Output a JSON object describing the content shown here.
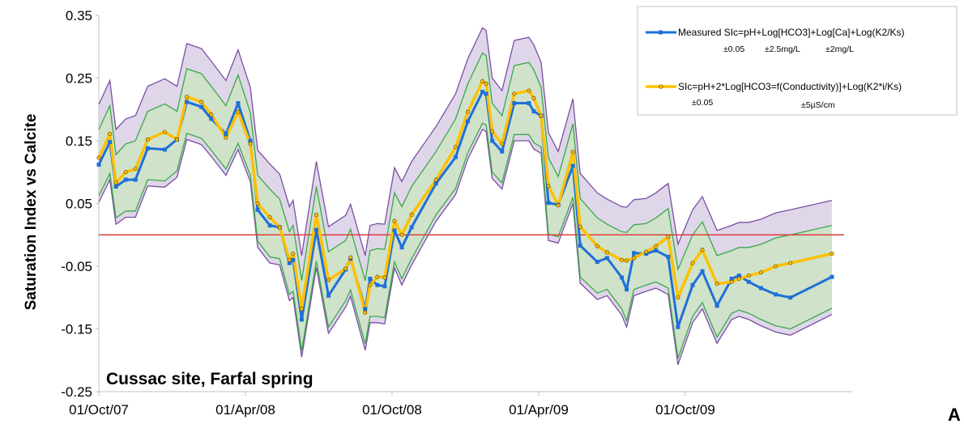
{
  "chart_data": {
    "type": "line",
    "ylabel": "Saturation Index vs Calcite",
    "annotation": "Cussac site, Farfal spring",
    "panel_label": "A",
    "ylim": [
      -0.25,
      0.35
    ],
    "y_ticks": [
      "0.35",
      "0.25",
      "0.15",
      "0.05",
      "-0.05",
      "-0.15",
      "-0.25"
    ],
    "x_ticks": [
      "01/Oct/07",
      "01/Apr/08",
      "01/Oct/08",
      "01/Apr/09",
      "01/Oct/09"
    ],
    "x_range_months": [
      0,
      30.5
    ],
    "reference_line": 0,
    "legend_position": "top-right",
    "legend": {
      "measured_label": "Measured SIc=pH+Log[HCO3]+Log[Ca]+Log(K2/Ks)",
      "measured_sub": [
        "±0.05",
        "±2.5mg/L",
        "±2mg/L"
      ],
      "calc_label": "SIc=pH+2*Log[HCO3=f(Conductivity)]+Log(K2*i/Ks)",
      "calc_sub": [
        "±0.05",
        "±5µS/cm"
      ]
    },
    "colors": {
      "measured": "#1f6fd9",
      "calculated": "#ffc000",
      "band_outer": "#7a4fa0",
      "band_inner": "#3aa84a",
      "reference": "#e03c3c"
    },
    "x": [
      0,
      0.45,
      0.7,
      1.1,
      1.5,
      2.0,
      2.7,
      3.2,
      3.6,
      4.2,
      4.6,
      5.2,
      5.7,
      6.2,
      6.5,
      7.0,
      7.4,
      7.8,
      7.95,
      8.3,
      8.9,
      9.4,
      10.1,
      10.3,
      10.9,
      11.1,
      11.4,
      11.7,
      12.1,
      12.4,
      12.8,
      13.8,
      14.6,
      15.1,
      15.7,
      15.85,
      16.1,
      16.5,
      17.0,
      17.6,
      17.8,
      18.1,
      18.4,
      18.8,
      19.4,
      19.7,
      20.4,
      20.8,
      21.4,
      21.6,
      21.9,
      22.4,
      22.8,
      23.3,
      23.7,
      24.3,
      24.7,
      25.3,
      25.9,
      26.2,
      26.6,
      27.1,
      27.7,
      28.3,
      30.0
    ],
    "series": [
      {
        "name": "Measured SIc=pH+Log[HCO3]+Log[Ca]+Log(K2/Ks)",
        "values": [
          0.112,
          0.148,
          0.077,
          0.088,
          0.088,
          0.138,
          0.136,
          0.152,
          0.212,
          0.204,
          0.185,
          0.161,
          0.21,
          0.15,
          0.04,
          0.015,
          0.012,
          -0.045,
          -0.04,
          -0.135,
          0.008,
          -0.097,
          -0.055,
          -0.038,
          -0.118,
          -0.07,
          -0.08,
          -0.082,
          0.007,
          -0.02,
          0.012,
          0.082,
          0.124,
          0.181,
          0.228,
          0.225,
          0.15,
          0.133,
          0.21,
          0.21,
          0.197,
          0.19,
          0.051,
          0.048,
          0.11,
          -0.017,
          -0.043,
          -0.037,
          -0.068,
          -0.087,
          -0.029,
          -0.03,
          -0.025,
          -0.035,
          -0.147,
          -0.08,
          -0.058,
          -0.113,
          -0.07,
          -0.065,
          -0.075,
          -0.085,
          -0.095,
          -0.1,
          -0.067
        ]
      },
      {
        "name": "SIc=pH+2*Log[HCO3=f(Conductivity)]+Log(K2*i/Ks)",
        "values": [
          0.123,
          0.161,
          0.083,
          0.1,
          0.105,
          0.152,
          0.164,
          0.152,
          0.22,
          0.212,
          0.192,
          0.155,
          0.196,
          0.145,
          0.05,
          0.028,
          0.012,
          -0.04,
          -0.03,
          -0.118,
          0.032,
          -0.072,
          -0.054,
          -0.036,
          -0.124,
          -0.08,
          -0.067,
          -0.068,
          0.022,
          0.0,
          0.032,
          0.088,
          0.14,
          0.196,
          0.245,
          0.241,
          0.165,
          0.145,
          0.225,
          0.23,
          0.218,
          0.19,
          0.078,
          0.047,
          0.132,
          0.013,
          -0.018,
          -0.028,
          -0.04,
          -0.041,
          -0.037,
          -0.027,
          -0.018,
          -0.003,
          -0.1,
          -0.045,
          -0.024,
          -0.078,
          -0.075,
          -0.07,
          -0.065,
          -0.06,
          -0.05,
          -0.045,
          -0.03
        ]
      }
    ]
  }
}
